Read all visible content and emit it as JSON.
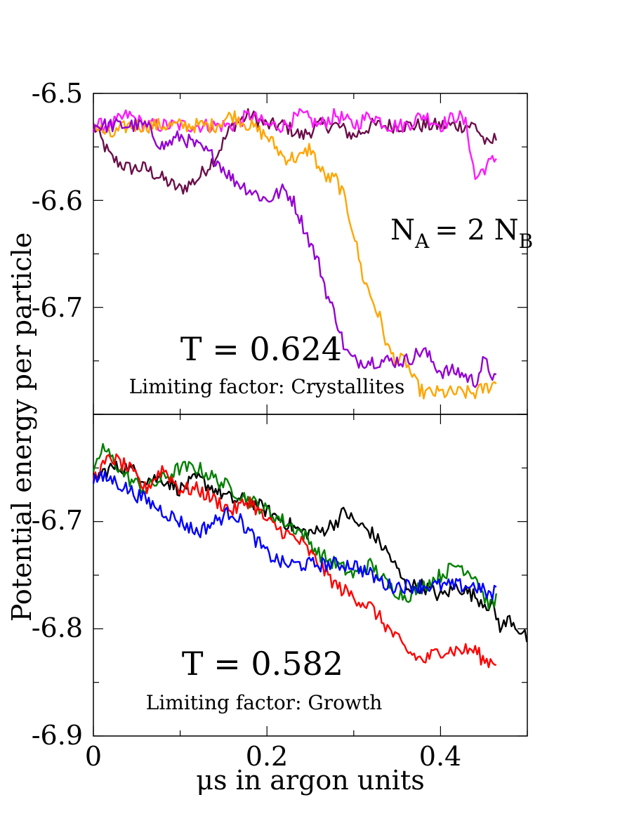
{
  "chart_data": [
    {
      "type": "line",
      "panel": "top",
      "xlim": [
        0,
        0.5
      ],
      "ylim": [
        -6.8,
        -6.5
      ],
      "yticks": [
        "-6.5",
        "-6.6",
        "-6.7"
      ],
      "annotation_n_label": "N",
      "annotation_n_sub_a": "A",
      "annotation_n_mid": "= 2 N",
      "annotation_n_sub_b": "B",
      "temperature": "T = 0.624",
      "limiting_factor": "Limiting factor: Crystallites",
      "series": [
        {
          "name": "maroon",
          "color": "#6b0f4a",
          "x": [
            0.0,
            0.02,
            0.04,
            0.06,
            0.08,
            0.1,
            0.12,
            0.14,
            0.16,
            0.18,
            0.2,
            0.22,
            0.24,
            0.26,
            0.28,
            0.3,
            0.32,
            0.34,
            0.36,
            0.38,
            0.4,
            0.42,
            0.44,
            0.455,
            0.465
          ],
          "y": [
            -6.53,
            -6.56,
            -6.57,
            -6.57,
            -6.58,
            -6.59,
            -6.58,
            -6.56,
            -6.53,
            -6.52,
            -6.53,
            -6.53,
            -6.54,
            -6.53,
            -6.53,
            -6.54,
            -6.53,
            -6.53,
            -6.53,
            -6.53,
            -6.53,
            -6.53,
            -6.53,
            -6.55,
            -6.54
          ]
        },
        {
          "name": "magenta",
          "color": "#ff1aff",
          "x": [
            0.0,
            0.02,
            0.04,
            0.06,
            0.08,
            0.1,
            0.12,
            0.14,
            0.16,
            0.18,
            0.2,
            0.22,
            0.24,
            0.26,
            0.28,
            0.3,
            0.32,
            0.34,
            0.36,
            0.38,
            0.4,
            0.42,
            0.43,
            0.44,
            0.45,
            0.465
          ],
          "y": [
            -6.53,
            -6.53,
            -6.52,
            -6.53,
            -6.53,
            -6.53,
            -6.53,
            -6.53,
            -6.53,
            -6.52,
            -6.53,
            -6.53,
            -6.52,
            -6.53,
            -6.52,
            -6.53,
            -6.52,
            -6.53,
            -6.53,
            -6.52,
            -6.53,
            -6.52,
            -6.53,
            -6.58,
            -6.57,
            -6.56
          ]
        },
        {
          "name": "orange",
          "color": "#ffa500",
          "x": [
            0.0,
            0.02,
            0.04,
            0.06,
            0.08,
            0.1,
            0.12,
            0.14,
            0.16,
            0.18,
            0.2,
            0.22,
            0.24,
            0.25,
            0.26,
            0.27,
            0.28,
            0.29,
            0.3,
            0.31,
            0.32,
            0.33,
            0.34,
            0.35,
            0.36,
            0.37,
            0.38,
            0.4,
            0.42,
            0.44,
            0.465
          ],
          "y": [
            -6.53,
            -6.54,
            -6.53,
            -6.53,
            -6.53,
            -6.53,
            -6.53,
            -6.53,
            -6.52,
            -6.53,
            -6.54,
            -6.56,
            -6.56,
            -6.55,
            -6.57,
            -6.58,
            -6.58,
            -6.6,
            -6.63,
            -6.67,
            -6.69,
            -6.71,
            -6.74,
            -6.75,
            -6.75,
            -6.77,
            -6.78,
            -6.78,
            -6.78,
            -6.78,
            -6.77
          ]
        },
        {
          "name": "purple",
          "color": "#9400d3",
          "x": [
            0.0,
            0.02,
            0.04,
            0.06,
            0.08,
            0.1,
            0.12,
            0.14,
            0.16,
            0.18,
            0.2,
            0.22,
            0.23,
            0.24,
            0.25,
            0.26,
            0.27,
            0.28,
            0.29,
            0.3,
            0.32,
            0.34,
            0.36,
            0.38,
            0.4,
            0.42,
            0.44,
            0.45,
            0.465
          ],
          "y": [
            -6.53,
            -6.53,
            -6.53,
            -6.53,
            -6.55,
            -6.54,
            -6.55,
            -6.56,
            -6.58,
            -6.59,
            -6.6,
            -6.59,
            -6.6,
            -6.62,
            -6.64,
            -6.66,
            -6.69,
            -6.71,
            -6.74,
            -6.75,
            -6.75,
            -6.75,
            -6.75,
            -6.74,
            -6.76,
            -6.76,
            -6.77,
            -6.75,
            -6.77
          ]
        }
      ]
    },
    {
      "type": "line",
      "panel": "bottom",
      "xlim": [
        0,
        0.5
      ],
      "ylim": [
        -6.9,
        -6.6
      ],
      "yticks": [
        "-6.7",
        "-6.8",
        "-6.9"
      ],
      "xticks": [
        "0",
        "0.2",
        "0.4"
      ],
      "xlabel_mu": "μ",
      "xlabel_rest": "s in argon units",
      "ylabel": "Potential energy per particle",
      "temperature": "T = 0.582",
      "limiting_factor": "Limiting factor: Growth",
      "series": [
        {
          "name": "black",
          "color": "#000000",
          "x": [
            0.0,
            0.02,
            0.04,
            0.06,
            0.08,
            0.1,
            0.12,
            0.14,
            0.16,
            0.18,
            0.2,
            0.22,
            0.24,
            0.26,
            0.28,
            0.29,
            0.3,
            0.32,
            0.34,
            0.36,
            0.38,
            0.4,
            0.42,
            0.44,
            0.46,
            0.47,
            0.48,
            0.5
          ],
          "y": [
            -6.66,
            -6.65,
            -6.65,
            -6.66,
            -6.66,
            -6.67,
            -6.66,
            -6.67,
            -6.68,
            -6.68,
            -6.69,
            -6.7,
            -6.71,
            -6.71,
            -6.7,
            -6.69,
            -6.7,
            -6.71,
            -6.73,
            -6.76,
            -6.76,
            -6.77,
            -6.76,
            -6.77,
            -6.78,
            -6.8,
            -6.79,
            -6.81
          ]
        },
        {
          "name": "green",
          "color": "#008000",
          "x": [
            0.0,
            0.01,
            0.02,
            0.04,
            0.06,
            0.08,
            0.1,
            0.12,
            0.14,
            0.16,
            0.18,
            0.2,
            0.22,
            0.24,
            0.26,
            0.28,
            0.3,
            0.32,
            0.34,
            0.36,
            0.38,
            0.4,
            0.42,
            0.44,
            0.45,
            0.46,
            0.465
          ],
          "y": [
            -6.66,
            -6.63,
            -6.64,
            -6.66,
            -6.67,
            -6.66,
            -6.65,
            -6.65,
            -6.66,
            -6.67,
            -6.68,
            -6.69,
            -6.7,
            -6.71,
            -6.73,
            -6.74,
            -6.75,
            -6.74,
            -6.76,
            -6.77,
            -6.76,
            -6.75,
            -6.74,
            -6.75,
            -6.77,
            -6.78,
            -6.77
          ]
        },
        {
          "name": "red",
          "color": "#ff0000",
          "x": [
            0.0,
            0.02,
            0.04,
            0.06,
            0.08,
            0.1,
            0.12,
            0.14,
            0.16,
            0.18,
            0.2,
            0.22,
            0.24,
            0.26,
            0.28,
            0.3,
            0.32,
            0.34,
            0.36,
            0.38,
            0.4,
            0.42,
            0.44,
            0.45,
            0.465
          ],
          "y": [
            -6.66,
            -6.64,
            -6.65,
            -6.67,
            -6.65,
            -6.67,
            -6.67,
            -6.68,
            -6.69,
            -6.68,
            -6.7,
            -6.71,
            -6.72,
            -6.74,
            -6.76,
            -6.77,
            -6.78,
            -6.8,
            -6.82,
            -6.83,
            -6.82,
            -6.82,
            -6.82,
            -6.83,
            -6.83
          ]
        },
        {
          "name": "blue",
          "color": "#0000ff",
          "x": [
            0.0,
            0.02,
            0.04,
            0.06,
            0.08,
            0.1,
            0.12,
            0.14,
            0.16,
            0.18,
            0.2,
            0.22,
            0.24,
            0.26,
            0.28,
            0.3,
            0.32,
            0.34,
            0.36,
            0.38,
            0.4,
            0.42,
            0.44,
            0.46,
            0.465
          ],
          "y": [
            -6.66,
            -6.66,
            -6.67,
            -6.68,
            -6.69,
            -6.7,
            -6.71,
            -6.7,
            -6.69,
            -6.71,
            -6.73,
            -6.74,
            -6.74,
            -6.74,
            -6.74,
            -6.74,
            -6.75,
            -6.76,
            -6.76,
            -6.76,
            -6.76,
            -6.76,
            -6.76,
            -6.77,
            -6.76
          ]
        }
      ]
    }
  ]
}
